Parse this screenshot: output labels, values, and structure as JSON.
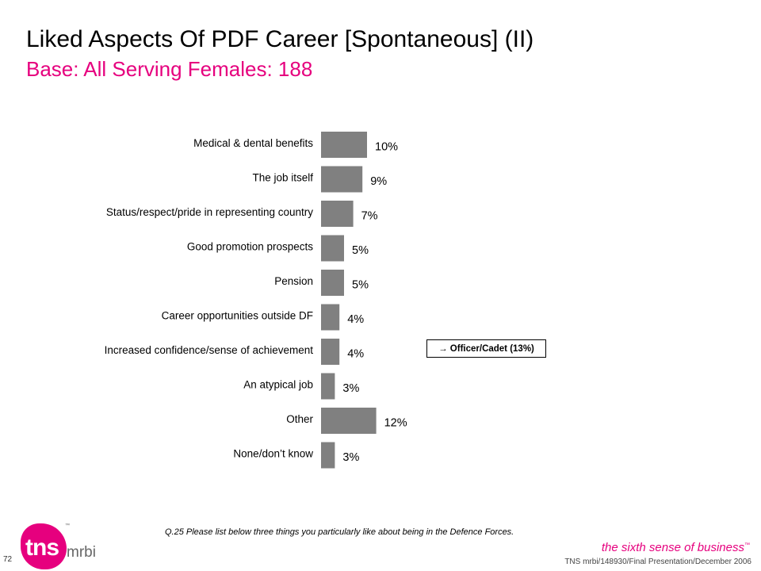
{
  "title": "Liked Aspects Of PDF Career [Spontaneous] (II)",
  "subtitle": "Base:  All Serving Females:  188",
  "chart_data": {
    "type": "bar",
    "orientation": "horizontal",
    "categories": [
      "Medical & dental benefits",
      "The job itself",
      "Status/respect/pride in representing country",
      "Good promotion prospects",
      "Pension",
      "Career opportunities outside DF",
      "Increased confidence/sense of achievement",
      "An atypical job",
      "Other",
      "None/don’t know"
    ],
    "values": [
      10,
      9,
      7,
      5,
      5,
      4,
      4,
      3,
      12,
      3
    ],
    "value_labels": [
      "10%",
      "9%",
      "7%",
      "5%",
      "5%",
      "4%",
      "4%",
      "3%",
      "12%",
      "3%"
    ],
    "unit": "%",
    "bar_color": "#808080",
    "grid": false,
    "legend": "none"
  },
  "callout": "→ Officer/Cadet  (13%)",
  "question": "Q.25  Please list below three things you particularly like about being in the Defence Forces.",
  "page_number": "72",
  "logo": {
    "main": "tns",
    "secondary": "mrbi",
    "tm": "™"
  },
  "tagline": {
    "text": "the sixth sense of business",
    "tm": "™"
  },
  "footer": "TNS mrbi/148930/Final Presentation/December 2006",
  "colors": {
    "accent": "#e6007e",
    "bar": "#808080",
    "text": "#000000"
  }
}
